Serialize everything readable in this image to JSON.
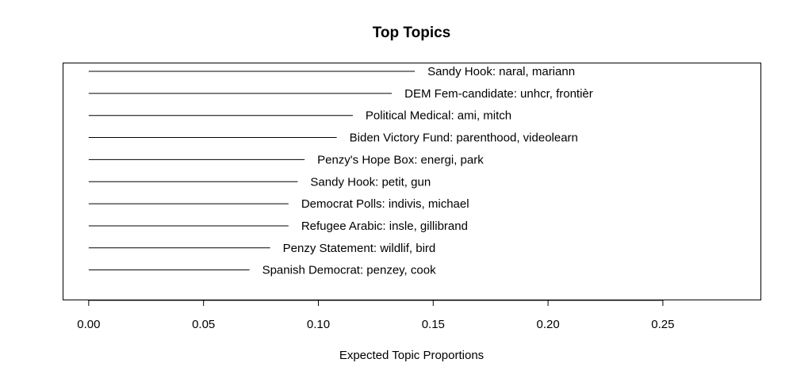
{
  "chart_data": {
    "type": "bar",
    "orientation": "horizontal",
    "title": "Top Topics",
    "xlabel": "Expected Topic Proportions",
    "ylabel": "",
    "xlim": [
      -0.011,
      0.2925
    ],
    "xticks": [
      0.0,
      0.05,
      0.1,
      0.15,
      0.2,
      0.25
    ],
    "xtick_labels": [
      "0.00",
      "0.05",
      "0.10",
      "0.15",
      "0.20",
      "0.25"
    ],
    "grid": false,
    "categories": [
      "Sandy Hook: naral, mariann",
      "DEM Fem-candidate: unhcr, frontièr",
      "Political Medical: ami, mitch",
      "Biden Victory Fund: parenthood, videolearn",
      "Penzy's Hope Box: energi, park",
      "Sandy Hook: petit, gun",
      "Democrat Polls: indivis, michael",
      "Refugee Arabic: insle, gillibrand",
      "Penzy Statement: wildlif, bird",
      "Spanish Democrat: penzey, cook"
    ],
    "values": [
      0.142,
      0.132,
      0.115,
      0.108,
      0.094,
      0.091,
      0.087,
      0.087,
      0.079,
      0.07
    ]
  }
}
